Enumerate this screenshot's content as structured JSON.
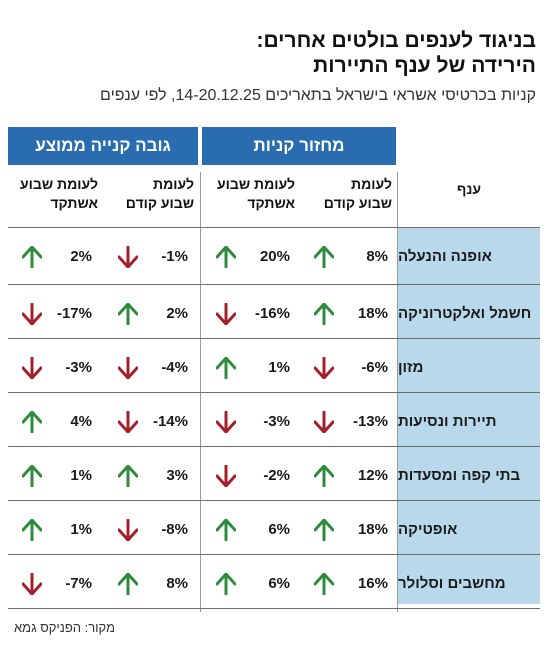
{
  "title_line1": "בניגוד לענפים בולטים אחרים:",
  "title_line2": "הירידה של ענף התיירות",
  "subtitle": "קניות בכרטיסי אשראי בישראל בתאריכים 14-20.12.25, לפי ענפים",
  "groups": {
    "purchase_volume": "מחזור קניות",
    "avg_purchase": "גובה קנייה ממוצע"
  },
  "columns": {
    "branch": "ענף",
    "vol_prev_week": "לעומת\nשבוע קודם",
    "vol_last_year": "לעומת שבוע\nאשתקד",
    "avg_prev_week": "לעומת\nשבוע קודם",
    "avg_last_year": "לעומת שבוע\nאשתקד"
  },
  "colors": {
    "up": "#2e8b3c",
    "down": "#a3202a",
    "header": "#2a6cb0",
    "branch_bg": "#b8d9ec"
  },
  "rows": [
    {
      "branch": "אופנה והנעלה",
      "vol_prev": "8%",
      "vol_year": "20%",
      "avg_prev": "-1%",
      "avg_year": "2%"
    },
    {
      "branch": "חשמל ואלקטרוניקה",
      "vol_prev": "18%",
      "vol_year": "-16%",
      "avg_prev": "2%",
      "avg_year": "-17%"
    },
    {
      "branch": "מזון",
      "vol_prev": "-6%",
      "vol_year": "1%",
      "avg_prev": "-4%",
      "avg_year": "-3%"
    },
    {
      "branch": "תיירות ונסיעות",
      "vol_prev": "-13%",
      "vol_year": "-3%",
      "avg_prev": "-14%",
      "avg_year": "4%"
    },
    {
      "branch": "בתי קפה ומסעדות",
      "vol_prev": "12%",
      "vol_year": "-2%",
      "avg_prev": "3%",
      "avg_year": "1%"
    },
    {
      "branch": "אופטיקה",
      "vol_prev": "18%",
      "vol_year": "6%",
      "avg_prev": "-8%",
      "avg_year": "1%"
    },
    {
      "branch": "מחשבים וסלולר",
      "vol_prev": "16%",
      "vol_year": "6%",
      "avg_prev": "8%",
      "avg_year": "-7%"
    }
  ],
  "source": "מקור: הפניקס גמא"
}
